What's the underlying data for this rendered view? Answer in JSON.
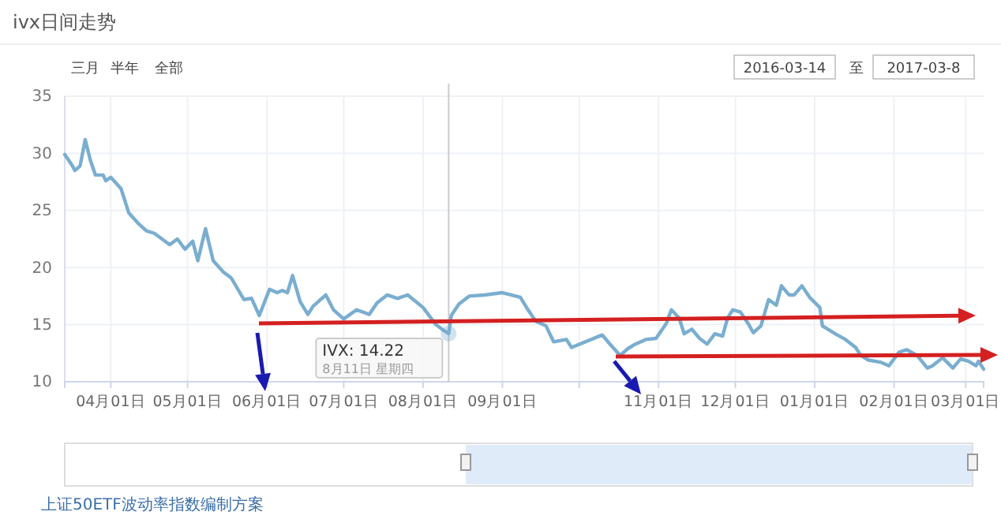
{
  "chart_data": {
    "type": "line",
    "title": "ivx日间走势",
    "annotations": [
      "三月",
      "半年",
      "全部",
      "2016-03-14",
      "至",
      "2017-03-8",
      "上证50ETF波动率指数编制方案",
      {
        "text": "IVX: 14.22",
        "x": "2016-08-11",
        "y": 14.22
      },
      "8月11日 星期四"
    ],
    "series": [
      {
        "color": "#7aaed0",
        "x": [
          "2016-03-14",
          "2016-03-17",
          "2016-03-18",
          "2016-03-20",
          "2016-03-22",
          "2016-03-24",
          "2016-03-26",
          "2016-03-29",
          "2016-03-30",
          "2016-04-01",
          "2016-04-05",
          "2016-04-08",
          "2016-04-12",
          "2016-04-15",
          "2016-04-18",
          "2016-04-21",
          "2016-04-24",
          "2016-04-27",
          "2016-04-30",
          "2016-05-03",
          "2016-05-05",
          "2016-05-08",
          "2016-05-11",
          "2016-05-15",
          "2016-05-18",
          "2016-05-23",
          "2016-05-26",
          "2016-05-29",
          "2016-06-02",
          "2016-06-05",
          "2016-06-07",
          "2016-06-09",
          "2016-06-11",
          "2016-06-14",
          "2016-06-17",
          "2016-06-19",
          "2016-06-24",
          "2016-06-27",
          "2016-07-01",
          "2016-07-06",
          "2016-07-11",
          "2016-07-14",
          "2016-07-18",
          "2016-07-22",
          "2016-07-26",
          "2016-08-01",
          "2016-08-06",
          "2016-08-09",
          "2016-08-11",
          "2016-08-12",
          "2016-08-15",
          "2016-08-19",
          "2016-08-25",
          "2016-09-01",
          "2016-09-08",
          "2016-09-11",
          "2016-09-14",
          "2016-09-18",
          "2016-09-21",
          "2016-09-26",
          "2016-09-28",
          "2016-10-10",
          "2016-10-13",
          "2016-10-17",
          "2016-10-20",
          "2016-10-23",
          "2016-10-27",
          "2016-10-31",
          "2016-11-04",
          "2016-11-06",
          "2016-11-09",
          "2016-11-11",
          "2016-11-14",
          "2016-11-17",
          "2016-11-20",
          "2016-11-23",
          "2016-11-26",
          "2016-11-28",
          "2016-11-30",
          "2016-12-03",
          "2016-12-06",
          "2016-12-08",
          "2016-12-11",
          "2016-12-14",
          "2016-12-17",
          "2016-12-19",
          "2016-12-22",
          "2016-12-24",
          "2016-12-27",
          "2016-12-30",
          "2017-01-03",
          "2017-01-04",
          "2017-01-09",
          "2017-01-13",
          "2017-01-17",
          "2017-01-19",
          "2017-01-22",
          "2017-01-27",
          "2017-01-30",
          "2017-02-03",
          "2017-02-06",
          "2017-02-10",
          "2017-02-14",
          "2017-02-16",
          "2017-02-20",
          "2017-02-24",
          "2017-02-27",
          "2017-03-02",
          "2017-03-05",
          "2017-03-06",
          "2017-03-08"
        ],
        "values": [
          29.9,
          28.9,
          28.5,
          28.9,
          31.2,
          29.4,
          28.1,
          28.1,
          27.6,
          27.9,
          26.9,
          24.8,
          23.8,
          23.2,
          23.0,
          22.5,
          22.0,
          22.5,
          21.6,
          22.3,
          20.6,
          23.4,
          20.6,
          19.6,
          19.1,
          17.2,
          17.3,
          15.8,
          18.1,
          17.8,
          18.0,
          17.8,
          19.3,
          17.0,
          15.9,
          16.6,
          17.6,
          16.3,
          15.5,
          16.3,
          15.9,
          16.9,
          17.6,
          17.3,
          17.6,
          16.5,
          15.0,
          14.5,
          14.22,
          15.8,
          16.8,
          17.5,
          17.6,
          17.8,
          17.4,
          16.3,
          15.3,
          14.9,
          13.5,
          13.7,
          13.0,
          14.1,
          13.3,
          12.3,
          12.9,
          13.3,
          13.7,
          13.8,
          15.1,
          16.3,
          15.6,
          14.2,
          14.6,
          13.8,
          13.3,
          14.2,
          14.0,
          15.6,
          16.3,
          16.1,
          15.1,
          14.3,
          14.9,
          17.2,
          16.7,
          18.4,
          17.6,
          17.6,
          18.4,
          17.4,
          16.5,
          14.9,
          14.2,
          13.7,
          13.0,
          12.3,
          11.9,
          11.7,
          11.4,
          12.6,
          12.8,
          12.3,
          11.2,
          11.4,
          12.1,
          11.2,
          12.0,
          11.8,
          11.4,
          11.8,
          11.1
        ]
      }
    ],
    "xlim": [
      "2016-03-14",
      "2017-03-08"
    ],
    "xticks": [
      {
        "value": "2016-04-01",
        "label": "04月01日"
      },
      {
        "value": "2016-05-01",
        "label": "05月01日"
      },
      {
        "value": "2016-06-01",
        "label": "06月01日"
      },
      {
        "value": "2016-07-01",
        "label": "07月01日"
      },
      {
        "value": "2016-08-01",
        "label": "08月01日"
      },
      {
        "value": "2016-09-01",
        "label": "09月01日"
      },
      {
        "value": "2016-10-01",
        "label": null
      },
      {
        "value": "2016-11-01",
        "label": "11月01日"
      },
      {
        "value": "2016-12-01",
        "label": "12月01日"
      },
      {
        "value": "2017-01-01",
        "label": "01月01日"
      },
      {
        "value": "2017-02-01",
        "label": "02月01日"
      },
      {
        "value": "2017-03-01",
        "label": "03月01日"
      }
    ],
    "ylim": [
      10,
      35
    ],
    "yticks": [
      10,
      15,
      20,
      25,
      30,
      35
    ],
    "ref_lines": [
      {
        "axis": "x",
        "value": "2016-08-11",
        "color": "#cccccc"
      }
    ],
    "grid": true,
    "marker": "none",
    "line_style": "solid"
  }
}
